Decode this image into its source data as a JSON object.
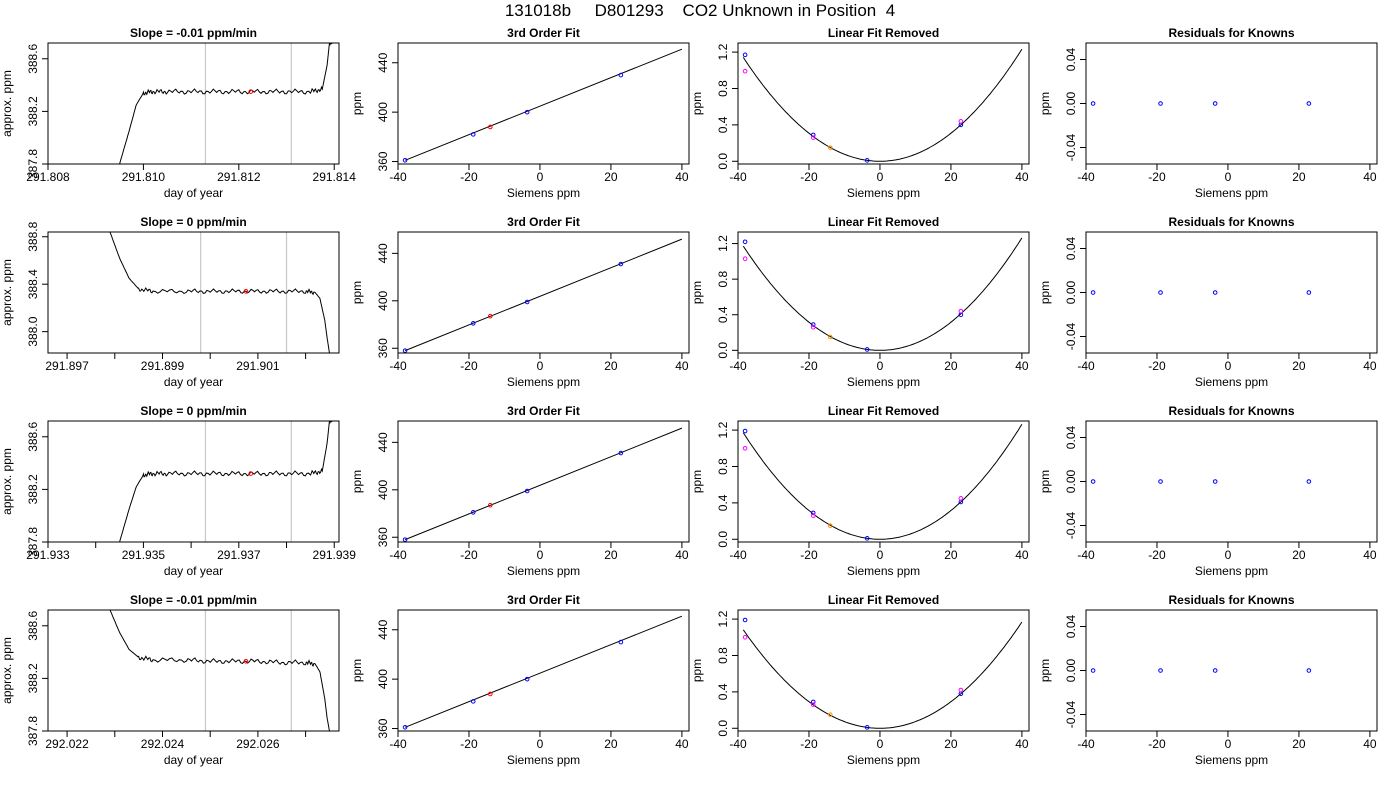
{
  "title": "131018b     D801293    CO2 Unknown in Position  4",
  "colors": {
    "trace": "#000000",
    "window_lines": "#c8c8c8",
    "marker_red": "#ff0000",
    "marker_orange": "#ff8c00",
    "point_blue": "#0000ff",
    "point_magenta": "#ff00ff"
  },
  "chart_data": [
    {
      "type": "line",
      "title": "Slope =  -0.01  ppm/min",
      "xlabel": "day of year",
      "ylabel": "approx. ppm",
      "xlim": [
        291.808,
        291.8141
      ],
      "ylim": [
        387.8,
        388.72
      ],
      "xticks": [
        291.808,
        291.81,
        291.812,
        291.814
      ],
      "xtick_labels": [
        "291.808",
        "291.810",
        "291.812",
        "291.814"
      ],
      "yticks": [
        387.8,
        388.2,
        388.6
      ],
      "ytick_labels": [
        "387.8",
        "388.2",
        "388.6"
      ],
      "series": [
        {
          "x": [
            291.8095,
            291.8097,
            291.80985,
            291.81,
            291.8102,
            291.8105,
            291.811,
            291.8115,
            291.812,
            291.8125,
            291.813,
            291.8135,
            291.81375,
            291.81385,
            291.8139,
            291.81395
          ],
          "y": [
            387.8,
            388.05,
            388.25,
            388.34,
            388.35,
            388.35,
            388.35,
            388.35,
            388.35,
            388.35,
            388.35,
            388.35,
            388.37,
            388.55,
            388.72,
            388.72
          ]
        }
      ],
      "window": [
        291.8113,
        291.8131
      ],
      "marker": {
        "x": 291.81225,
        "y": 388.35
      }
    },
    {
      "type": "scatter",
      "title": "3rd Order Fit",
      "xlabel": "Siemens ppm",
      "ylabel": "ppm",
      "xlim": [
        -40,
        42
      ],
      "ylim": [
        358,
        456
      ],
      "xticks": [
        -40,
        -20,
        0,
        20,
        40
      ],
      "yticks": [
        360,
        400,
        440
      ],
      "line": [
        [
          -38,
          361
        ],
        [
          40,
          451
        ]
      ],
      "points": [
        {
          "x": -38,
          "y": 361,
          "c": "point_blue"
        },
        {
          "x": -18.8,
          "y": 382,
          "c": "point_blue"
        },
        {
          "x": -3.6,
          "y": 400,
          "c": "point_blue"
        },
        {
          "x": 22.8,
          "y": 430,
          "c": "point_blue"
        },
        {
          "x": -14,
          "y": 388,
          "c": "marker_red"
        }
      ]
    },
    {
      "type": "scatter",
      "title": "Linear Fit Removed",
      "xlabel": "Siemens ppm",
      "ylabel": "ppm",
      "xlim": [
        -40,
        42
      ],
      "ylim": [
        -0.03,
        1.3
      ],
      "xticks": [
        -40,
        -20,
        0,
        20,
        40
      ],
      "yticks": [
        0.0,
        0.4,
        0.8,
        1.2
      ],
      "ytick_labels": [
        "0.0",
        "0.4",
        "0.8",
        "1.2"
      ],
      "curve": {
        "vertex": 0,
        "a": 0.00077
      },
      "points": [
        {
          "x": -38,
          "y": 1.17,
          "c": "point_blue"
        },
        {
          "x": -38,
          "y": 0.99,
          "c": "point_magenta"
        },
        {
          "x": -18.8,
          "y": 0.29,
          "c": "point_blue"
        },
        {
          "x": -18.8,
          "y": 0.26,
          "c": "point_magenta"
        },
        {
          "x": -14,
          "y": 0.15,
          "c": "marker_orange"
        },
        {
          "x": -3.6,
          "y": 0.01,
          "c": "point_blue"
        },
        {
          "x": 22.8,
          "y": 0.4,
          "c": "point_blue"
        },
        {
          "x": 22.8,
          "y": 0.44,
          "c": "point_magenta"
        }
      ]
    },
    {
      "type": "scatter",
      "title": "Residuals for Knowns",
      "xlabel": "Siemens ppm",
      "ylabel": "ppm",
      "xlim": [
        -40,
        42
      ],
      "ylim": [
        -0.055,
        0.055
      ],
      "xticks": [
        -40,
        -20,
        0,
        20,
        40
      ],
      "yticks": [
        -0.04,
        0.0,
        0.04
      ],
      "ytick_labels": [
        "-0.04",
        "0.00",
        "0.04"
      ],
      "points": [
        {
          "x": -38,
          "y": 0,
          "c": "point_blue"
        },
        {
          "x": -19,
          "y": 0,
          "c": "point_blue"
        },
        {
          "x": -3.6,
          "y": 0,
          "c": "point_blue"
        },
        {
          "x": 22.8,
          "y": 0,
          "c": "point_blue"
        }
      ]
    },
    {
      "type": "line",
      "title": "Slope =  0  ppm/min",
      "xlabel": "day of year",
      "ylabel": "approx. ppm",
      "xlim": [
        291.8966,
        291.9027
      ],
      "ylim": [
        387.82,
        388.84
      ],
      "xticks": [
        291.897,
        291.898,
        291.899,
        291.9,
        291.901,
        291.902
      ],
      "xtick_labels": [
        "291.897",
        "",
        "291.899",
        "",
        "291.901",
        ""
      ],
      "yticks": [
        388.0,
        388.4,
        388.8
      ],
      "ytick_labels": [
        "388.0",
        "388.4",
        "388.8"
      ],
      "series": [
        {
          "x": [
            291.8979,
            291.8981,
            291.8983,
            291.8985,
            291.8988,
            291.8995,
            291.9,
            291.9005,
            291.901,
            291.9015,
            291.902,
            291.9022,
            291.9023,
            291.9024,
            291.90245,
            291.9025
          ],
          "y": [
            388.84,
            388.62,
            388.45,
            388.36,
            388.34,
            388.34,
            388.34,
            388.34,
            388.34,
            388.34,
            388.34,
            388.33,
            388.28,
            388.1,
            387.95,
            387.82
          ]
        }
      ],
      "window": [
        291.8998,
        291.9016
      ],
      "marker": {
        "x": 291.90075,
        "y": 388.34
      }
    },
    {
      "type": "scatter",
      "title": "3rd Order Fit",
      "xlabel": "Siemens ppm",
      "ylabel": "ppm",
      "xlim": [
        -40,
        42
      ],
      "ylim": [
        356,
        458
      ],
      "xticks": [
        -40,
        -20,
        0,
        20,
        40
      ],
      "yticks": [
        360,
        400,
        440
      ],
      "line": [
        [
          -38,
          358
        ],
        [
          40,
          452
        ]
      ],
      "points": [
        {
          "x": -38,
          "y": 358,
          "c": "point_blue"
        },
        {
          "x": -18.8,
          "y": 381,
          "c": "point_blue"
        },
        {
          "x": -3.6,
          "y": 399,
          "c": "point_blue"
        },
        {
          "x": 22.8,
          "y": 431,
          "c": "point_blue"
        },
        {
          "x": -14,
          "y": 387,
          "c": "marker_red"
        }
      ]
    },
    {
      "type": "scatter",
      "title": "Linear Fit Removed",
      "xlabel": "Siemens ppm",
      "ylabel": "ppm",
      "xlim": [
        -40,
        42
      ],
      "ylim": [
        -0.03,
        1.33
      ],
      "xticks": [
        -40,
        -20,
        0,
        20,
        40
      ],
      "yticks": [
        0.0,
        0.4,
        0.8,
        1.2
      ],
      "ytick_labels": [
        "0.0",
        "0.4",
        "0.8",
        "1.2"
      ],
      "curve": {
        "vertex": 0,
        "a": 0.00079
      },
      "points": [
        {
          "x": -38,
          "y": 1.22,
          "c": "point_blue"
        },
        {
          "x": -38,
          "y": 1.03,
          "c": "point_magenta"
        },
        {
          "x": -18.8,
          "y": 0.29,
          "c": "point_blue"
        },
        {
          "x": -18.8,
          "y": 0.26,
          "c": "point_magenta"
        },
        {
          "x": -14,
          "y": 0.15,
          "c": "marker_orange"
        },
        {
          "x": -3.6,
          "y": 0.01,
          "c": "point_blue"
        },
        {
          "x": 22.8,
          "y": 0.4,
          "c": "point_blue"
        },
        {
          "x": 22.8,
          "y": 0.44,
          "c": "point_magenta"
        }
      ]
    },
    {
      "type": "scatter",
      "title": "Residuals for Knowns",
      "xlabel": "Siemens ppm",
      "ylabel": "ppm",
      "xlim": [
        -40,
        42
      ],
      "ylim": [
        -0.055,
        0.055
      ],
      "xticks": [
        -40,
        -20,
        0,
        20,
        40
      ],
      "yticks": [
        -0.04,
        0.0,
        0.04
      ],
      "ytick_labels": [
        "-0.04",
        "0.00",
        "0.04"
      ],
      "points": [
        {
          "x": -38,
          "y": 0,
          "c": "point_blue"
        },
        {
          "x": -19,
          "y": 0,
          "c": "point_blue"
        },
        {
          "x": -3.6,
          "y": 0,
          "c": "point_blue"
        },
        {
          "x": 22.8,
          "y": 0,
          "c": "point_blue"
        }
      ]
    },
    {
      "type": "line",
      "title": "Slope =  0  ppm/min",
      "xlabel": "day of year",
      "ylabel": "approx. ppm",
      "xlim": [
        291.933,
        291.9391
      ],
      "ylim": [
        387.8,
        388.72
      ],
      "xticks": [
        291.933,
        291.934,
        291.935,
        291.936,
        291.937,
        291.938,
        291.939
      ],
      "xtick_labels": [
        "291.933",
        "",
        "291.935",
        "",
        "291.937",
        "",
        "291.939"
      ],
      "yticks": [
        387.8,
        388.2,
        388.6
      ],
      "ytick_labels": [
        "387.8",
        "388.2",
        "388.6"
      ],
      "series": [
        {
          "x": [
            291.9345,
            291.9347,
            291.93485,
            291.935,
            291.9352,
            291.9355,
            291.936,
            291.9365,
            291.937,
            291.9375,
            291.938,
            291.9385,
            291.93875,
            291.93885,
            291.9389,
            291.93895
          ],
          "y": [
            387.8,
            388.05,
            388.22,
            388.31,
            388.32,
            388.32,
            388.32,
            388.32,
            388.32,
            388.32,
            388.32,
            388.32,
            388.34,
            388.55,
            388.72,
            388.72
          ]
        }
      ],
      "window": [
        291.9363,
        291.9381
      ],
      "marker": {
        "x": 291.93725,
        "y": 388.32
      }
    },
    {
      "type": "scatter",
      "title": "3rd Order Fit",
      "xlabel": "Siemens ppm",
      "ylabel": "ppm",
      "xlim": [
        -40,
        42
      ],
      "ylim": [
        356,
        458
      ],
      "xticks": [
        -40,
        -20,
        0,
        20,
        40
      ],
      "yticks": [
        360,
        400,
        440
      ],
      "line": [
        [
          -38,
          358
        ],
        [
          40,
          452
        ]
      ],
      "points": [
        {
          "x": -38,
          "y": 358,
          "c": "point_blue"
        },
        {
          "x": -18.8,
          "y": 381,
          "c": "point_blue"
        },
        {
          "x": -3.6,
          "y": 399,
          "c": "point_blue"
        },
        {
          "x": 22.8,
          "y": 431,
          "c": "point_blue"
        },
        {
          "x": -14,
          "y": 387,
          "c": "marker_red"
        }
      ]
    },
    {
      "type": "scatter",
      "title": "Linear Fit Removed",
      "xlabel": "Siemens ppm",
      "ylabel": "ppm",
      "xlim": [
        -40,
        42
      ],
      "ylim": [
        -0.03,
        1.3
      ],
      "xticks": [
        -40,
        -20,
        0,
        20,
        40
      ],
      "yticks": [
        0.0,
        0.4,
        0.8,
        1.2
      ],
      "ytick_labels": [
        "0.0",
        "0.4",
        "0.8",
        "1.2"
      ],
      "curve": {
        "vertex": 0,
        "a": 0.00079
      },
      "points": [
        {
          "x": -38,
          "y": 1.19,
          "c": "point_blue"
        },
        {
          "x": -38,
          "y": 1.0,
          "c": "point_magenta"
        },
        {
          "x": -18.8,
          "y": 0.29,
          "c": "point_blue"
        },
        {
          "x": -18.8,
          "y": 0.26,
          "c": "point_magenta"
        },
        {
          "x": -14,
          "y": 0.15,
          "c": "marker_orange"
        },
        {
          "x": -3.6,
          "y": 0.01,
          "c": "point_blue"
        },
        {
          "x": 22.8,
          "y": 0.41,
          "c": "point_blue"
        },
        {
          "x": 22.8,
          "y": 0.45,
          "c": "point_magenta"
        }
      ]
    },
    {
      "type": "scatter",
      "title": "Residuals for Knowns",
      "xlabel": "Siemens ppm",
      "ylabel": "ppm",
      "xlim": [
        -40,
        42
      ],
      "ylim": [
        -0.055,
        0.055
      ],
      "xticks": [
        -40,
        -20,
        0,
        20,
        40
      ],
      "yticks": [
        -0.04,
        0.0,
        0.04
      ],
      "ytick_labels": [
        "-0.04",
        "0.00",
        "0.04"
      ],
      "points": [
        {
          "x": -38,
          "y": 0,
          "c": "point_blue"
        },
        {
          "x": -19,
          "y": 0,
          "c": "point_blue"
        },
        {
          "x": -3.6,
          "y": 0,
          "c": "point_blue"
        },
        {
          "x": 22.8,
          "y": 0,
          "c": "point_blue"
        }
      ]
    },
    {
      "type": "line",
      "title": "Slope =  -0.01  ppm/min",
      "xlabel": "day of year",
      "ylabel": "approx. ppm",
      "xlim": [
        292.0216,
        292.0277
      ],
      "ylim": [
        387.8,
        388.72
      ],
      "xticks": [
        292.022,
        292.023,
        292.024,
        292.025,
        292.026,
        292.027
      ],
      "xtick_labels": [
        "292.022",
        "",
        "292.024",
        "",
        "292.026",
        ""
      ],
      "yticks": [
        387.8,
        388.2,
        388.6
      ],
      "ytick_labels": [
        "387.8",
        "388.2",
        "388.6"
      ],
      "series": [
        {
          "x": [
            292.0229,
            292.0231,
            292.0233,
            292.0235,
            292.0238,
            292.0245,
            292.025,
            292.0255,
            292.026,
            292.0265,
            292.027,
            292.0272,
            292.0273,
            292.0274,
            292.02745,
            292.0275
          ],
          "y": [
            388.72,
            388.55,
            388.42,
            388.36,
            388.34,
            388.34,
            388.33,
            388.33,
            388.33,
            388.32,
            388.32,
            388.31,
            388.25,
            388.05,
            387.9,
            387.8
          ]
        }
      ],
      "window": [
        292.0249,
        292.0267
      ],
      "marker": {
        "x": 292.02575,
        "y": 388.33
      }
    },
    {
      "type": "scatter",
      "title": "3rd Order Fit",
      "xlabel": "Siemens ppm",
      "ylabel": "ppm",
      "xlim": [
        -40,
        42
      ],
      "ylim": [
        358,
        456
      ],
      "xticks": [
        -40,
        -20,
        0,
        20,
        40
      ],
      "yticks": [
        360,
        400,
        440
      ],
      "line": [
        [
          -38,
          361
        ],
        [
          40,
          451
        ]
      ],
      "points": [
        {
          "x": -38,
          "y": 361,
          "c": "point_blue"
        },
        {
          "x": -18.8,
          "y": 382,
          "c": "point_blue"
        },
        {
          "x": -3.6,
          "y": 400,
          "c": "point_blue"
        },
        {
          "x": 22.8,
          "y": 430,
          "c": "point_blue"
        },
        {
          "x": -14,
          "y": 388,
          "c": "marker_red"
        }
      ]
    },
    {
      "type": "scatter",
      "title": "Linear Fit Removed",
      "xlabel": "Siemens ppm",
      "ylabel": "ppm",
      "xlim": [
        -40,
        42
      ],
      "ylim": [
        -0.03,
        1.3
      ],
      "xticks": [
        -40,
        -20,
        0,
        20,
        40
      ],
      "yticks": [
        0.0,
        0.4,
        0.8,
        1.2
      ],
      "ytick_labels": [
        "0.0",
        "0.4",
        "0.8",
        "1.2"
      ],
      "curve": {
        "vertex": 0,
        "a": 0.00073
      },
      "points": [
        {
          "x": -38,
          "y": 1.19,
          "c": "point_blue"
        },
        {
          "x": -38,
          "y": 1.0,
          "c": "point_magenta"
        },
        {
          "x": -18.8,
          "y": 0.29,
          "c": "point_blue"
        },
        {
          "x": -18.8,
          "y": 0.26,
          "c": "point_magenta"
        },
        {
          "x": -14,
          "y": 0.15,
          "c": "marker_orange"
        },
        {
          "x": -3.6,
          "y": 0.01,
          "c": "point_blue"
        },
        {
          "x": 22.8,
          "y": 0.38,
          "c": "point_blue"
        },
        {
          "x": 22.8,
          "y": 0.42,
          "c": "point_magenta"
        }
      ]
    },
    {
      "type": "scatter",
      "title": "Residuals for Knowns",
      "xlabel": "Siemens ppm",
      "ylabel": "ppm",
      "xlim": [
        -40,
        42
      ],
      "ylim": [
        -0.055,
        0.055
      ],
      "xticks": [
        -40,
        -20,
        0,
        20,
        40
      ],
      "yticks": [
        -0.04,
        0.0,
        0.04
      ],
      "ytick_labels": [
        "-0.04",
        "0.00",
        "0.04"
      ],
      "points": [
        {
          "x": -38,
          "y": 0,
          "c": "point_blue"
        },
        {
          "x": -19,
          "y": 0,
          "c": "point_blue"
        },
        {
          "x": -3.6,
          "y": 0,
          "c": "point_blue"
        },
        {
          "x": 22.8,
          "y": 0,
          "c": "point_blue"
        }
      ]
    }
  ]
}
